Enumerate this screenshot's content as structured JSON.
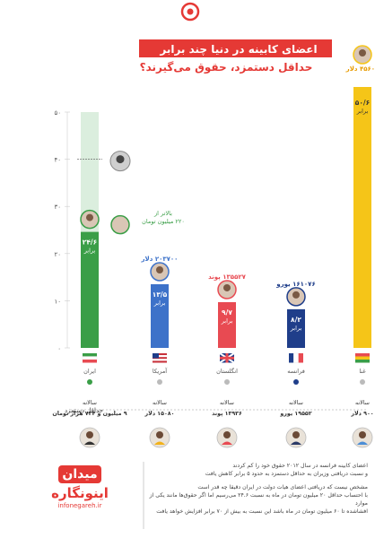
{
  "header": {
    "title_line1": "اعضای کابینه در دنیا چند برابر",
    "title_line2": "حداقل دستمزد، حقوق می‌گیرند؟"
  },
  "min_wage_label": "حداقل دستمزد",
  "colors": {
    "iran": "#3a9e47",
    "us": "#3d72c9",
    "uk": "#e84a52",
    "france": "#1f3e8a",
    "ghana": "#f5c518",
    "accent": "#e53935"
  },
  "chart_data": {
    "type": "bar",
    "y_ticks": [
      "۵۰",
      "۴۰",
      "۳۰",
      "۲۰",
      "۱۰",
      "۰"
    ],
    "ylim": [
      0,
      50
    ],
    "categories": [
      "ایران",
      "آمریکا",
      "انگلستان",
      "فرانسه",
      "غنا"
    ],
    "values": [
      24.6,
      13.5,
      9.7,
      8.2,
      50.6
    ],
    "ratio_labels": [
      "۲۴/۶",
      "۱۳/۵",
      "۹/۷",
      "۸/۲",
      "۵۰/۶"
    ],
    "ratio_suffix": "برابر",
    "salaries": [
      "",
      "۲۰۳۷۰۰ دلار",
      "۱۳۵۵۲۷ پوند",
      "۱۶۱۰۷۶ یورو",
      "۴۵۶۰۰ دلار"
    ],
    "iran_annotation": [
      "بالاتر از",
      "۲۲۰ میلیون تومان"
    ],
    "iran_secondary_value": 40,
    "min_wage_prefix": "سالانه",
    "min_wages": [
      "۹ میلیون و ۷۲۴ هزار تومان",
      "۱۵۰۸۰ دلار",
      "۱۳۹۳۶ پوند",
      "۱۹۵۵۲ یورو",
      "۹۰۰ دلار"
    ]
  },
  "notes": {
    "line1": "اعضای کابینه فرانسه در سال ۲۰۱۲ حقوق خود را کم کردند",
    "line2": "و نسبت دریافتی وزیران به حداقل دستمزد به حدود ۵ برابر کاهش یافت",
    "line3": "مشخص نیست که دریافتی اعضای هیات دولت در ایران دقیقا چه قدر است",
    "line4": "با احتساب حداقل ۲۰ میلیون تومان در ماه به نسبت ۲۴.۶ می‌رسیم اما اگر حقوق‌ها مانند یکی از موارد",
    "line5": "افشاشده تا ۶۰ میلیون تومان در ماه باشد این نسبت به بیش از ۷۰ برابر افزایش خواهد یافت"
  },
  "brand": {
    "logo": "میدان",
    "name": "اینونگاره",
    "url": "infonegareh.ir"
  }
}
